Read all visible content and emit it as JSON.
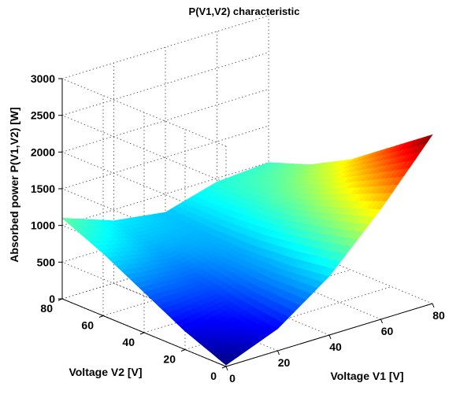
{
  "chart_data": {
    "type": "surface",
    "title": "P(V1,V2) characteristic",
    "xlabel": "Voltage V1 [V]",
    "ylabel": "Voltage V2 [V]",
    "zlabel": "Absorbed power P(V1,V2)  [W]",
    "xlim": [
      0,
      80
    ],
    "ylim": [
      0,
      80
    ],
    "zlim": [
      0,
      3000
    ],
    "xticks": [
      "0",
      "20",
      "40",
      "60",
      "80"
    ],
    "yticks": [
      "0",
      "20",
      "40",
      "60",
      "80"
    ],
    "zticks": [
      "0",
      "500",
      "1000",
      "1500",
      "2000",
      "2500",
      "3000"
    ],
    "grid": true,
    "colormap": "jet",
    "surface_samples": {
      "edge_V2_80": {
        "V1": [
          0,
          20,
          40,
          60,
          80
        ],
        "P": [
          1100,
          850,
          750,
          950,
          1000
        ]
      },
      "edge_V1_0": {
        "V2": [
          0,
          20,
          40,
          60,
          80
        ],
        "P": [
          20,
          250,
          550,
          850,
          1100
        ]
      },
      "edge_V2_0": {
        "V1": [
          0,
          20,
          40,
          60,
          80
        ],
        "P": [
          20,
          300,
          800,
          1500,
          2300
        ]
      },
      "edge_V1_80": {
        "V2": [
          0,
          20,
          40,
          60,
          80
        ],
        "P": [
          2300,
          1900,
          1500,
          1200,
          1000
        ]
      }
    }
  }
}
